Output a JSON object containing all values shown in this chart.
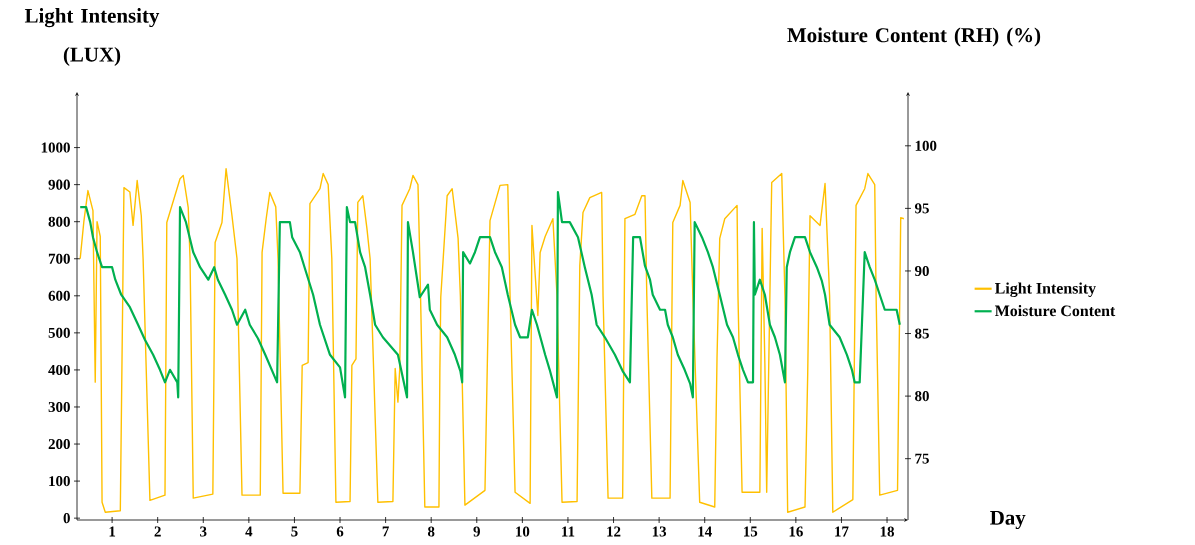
{
  "chart_data": {
    "type": "line",
    "xlabel": "Day",
    "ylabel": "Light Intensity (LUX)",
    "y2label": "Moisture Content (RH) (%)",
    "xlim": [
      0.23,
      18.46
    ],
    "xticks": [
      1,
      2,
      3,
      4,
      5,
      6,
      7,
      8,
      9,
      10,
      11,
      12,
      13,
      14,
      15,
      16,
      17,
      18
    ],
    "ylim": [
      -5,
      1150
    ],
    "yticks": [
      0,
      100,
      200,
      300,
      400,
      500,
      600,
      700,
      800,
      900,
      1000
    ],
    "y2lim": [
      70.1,
      104.3
    ],
    "y2ticks": [
      75,
      80,
      85,
      90,
      95,
      100
    ],
    "legend": "right",
    "marker": "none",
    "series": [
      {
        "name": "Light Intensity",
        "color": "#ffc000",
        "x": [
          0.3,
          0.38,
          0.47,
          0.58,
          0.63,
          0.67,
          0.74,
          0.78,
          0.85,
          1.18,
          1.26,
          1.39,
          1.46,
          1.55,
          1.64,
          1.68,
          1.83,
          2.16,
          2.2,
          2.49,
          2.56,
          2.67,
          2.71,
          2.78,
          3.21,
          3.26,
          3.41,
          3.5,
          3.63,
          3.74,
          3.85,
          4.25,
          4.29,
          4.38,
          4.46,
          4.59,
          4.64,
          4.75,
          5.12,
          5.17,
          5.3,
          5.34,
          5.56,
          5.63,
          5.74,
          5.82,
          5.91,
          6.22,
          6.26,
          6.35,
          6.39,
          6.5,
          6.59,
          6.66,
          6.83,
          7.16,
          7.21,
          7.27,
          7.31,
          7.36,
          7.53,
          7.6,
          7.71,
          7.75,
          7.86,
          8.17,
          8.19,
          8.21,
          8.35,
          8.46,
          8.59,
          8.64,
          8.74,
          9.18,
          9.29,
          9.51,
          9.68,
          9.73,
          9.84,
          10.17,
          10.21,
          10.34,
          10.39,
          10.5,
          10.67,
          10.76,
          10.87,
          11.2,
          11.26,
          11.33,
          11.48,
          11.74,
          11.77,
          11.88,
          12.2,
          12.25,
          12.47,
          12.62,
          12.69,
          12.73,
          12.84,
          13.24,
          13.3,
          13.46,
          13.52,
          13.68,
          13.74,
          13.89,
          14.22,
          14.27,
          14.33,
          14.44,
          14.71,
          14.73,
          14.82,
          15.21,
          15.26,
          15.32,
          15.36,
          15.39,
          15.47,
          15.69,
          15.76,
          15.82,
          16.2,
          16.26,
          16.31,
          16.53,
          16.64,
          16.74,
          16.81,
          17.25,
          17.32,
          17.51,
          17.58,
          17.73,
          17.76,
          17.84,
          18.23,
          18.3,
          18.37
        ],
        "values": [
          700,
          800,
          884,
          830,
          367,
          800,
          760,
          43,
          16,
          20,
          892,
          880,
          790,
          911,
          816,
          700,
          48,
          62,
          798,
          916,
          925,
          838,
          700,
          54,
          65,
          744,
          798,
          943,
          816,
          700,
          62,
          62,
          717,
          808,
          879,
          840,
          700,
          67,
          67,
          412,
          420,
          849,
          889,
          930,
          900,
          700,
          43,
          45,
          412,
          430,
          852,
          870,
          782,
          700,
          43,
          45,
          404,
          313,
          404,
          844,
          889,
          925,
          900,
          700,
          30,
          30,
          394,
          596,
          870,
          889,
          755,
          600,
          35,
          75,
          803,
          898,
          900,
          600,
          70,
          40,
          790,
          547,
          717,
          760,
          808,
          600,
          43,
          45,
          682,
          825,
          865,
          879,
          600,
          54,
          54,
          808,
          820,
          870,
          870,
          600,
          54,
          54,
          798,
          844,
          911,
          852,
          600,
          43,
          30,
          431,
          755,
          808,
          844,
          600,
          70,
          70,
          782,
          418,
          70,
          300,
          906,
          930,
          600,
          16,
          30,
          391,
          816,
          790,
          903,
          600,
          16,
          50,
          844,
          889,
          930,
          900,
          600,
          62,
          75,
          811,
          808
        ]
      },
      {
        "name": "Moisture Content",
        "color": "#00b050",
        "axis": "y2",
        "x": [
          0.3,
          0.43,
          0.52,
          0.58,
          0.67,
          0.78,
          1.0,
          1.07,
          1.2,
          1.39,
          1.57,
          1.72,
          1.9,
          2.05,
          2.16,
          2.27,
          2.43,
          2.45,
          2.49,
          2.62,
          2.78,
          2.93,
          3.11,
          3.24,
          3.32,
          3.48,
          3.63,
          3.74,
          3.92,
          4.02,
          4.2,
          4.36,
          4.62,
          4.68,
          4.9,
          4.95,
          5.12,
          5.23,
          5.41,
          5.56,
          5.78,
          6.0,
          6.11,
          6.15,
          6.22,
          6.33,
          6.44,
          6.55,
          6.66,
          6.77,
          6.94,
          7.27,
          7.47,
          7.49,
          7.6,
          7.75,
          7.93,
          7.97,
          8.13,
          8.35,
          8.52,
          8.64,
          8.68,
          8.7,
          8.85,
          8.96,
          9.07,
          9.29,
          9.4,
          9.55,
          9.68,
          9.84,
          9.95,
          10.12,
          10.21,
          10.32,
          10.5,
          10.6,
          10.76,
          10.78,
          10.87,
          11.04,
          11.22,
          11.37,
          11.52,
          11.63,
          11.81,
          12.03,
          12.2,
          12.36,
          12.43,
          12.58,
          12.69,
          12.8,
          12.86,
          13.02,
          13.13,
          13.19,
          13.3,
          13.41,
          13.56,
          13.68,
          13.74,
          13.78,
          13.94,
          14.07,
          14.18,
          14.33,
          14.49,
          14.62,
          14.73,
          14.84,
          14.95,
          15.06,
          15.08,
          15.1,
          15.21,
          15.32,
          15.43,
          15.54,
          15.65,
          15.76,
          15.8,
          15.87,
          15.98,
          16.2,
          16.31,
          16.46,
          16.57,
          16.64,
          16.74,
          16.96,
          17.12,
          17.23,
          17.29,
          17.4,
          17.51,
          17.62,
          17.73,
          17.84,
          17.95,
          18.21,
          18.28
        ],
        "values": [
          95.1,
          95.1,
          93.9,
          92.7,
          91.5,
          90.3,
          90.3,
          89.3,
          88.1,
          87.1,
          85.7,
          84.5,
          83.3,
          82.1,
          81.1,
          82.1,
          81.1,
          79.9,
          95.1,
          93.9,
          91.5,
          90.3,
          89.3,
          90.3,
          89.3,
          88.1,
          86.9,
          85.7,
          86.9,
          85.7,
          84.6,
          83.3,
          81.1,
          93.9,
          93.9,
          92.7,
          91.5,
          90.2,
          88.1,
          85.7,
          83.3,
          82.3,
          79.9,
          95.1,
          93.9,
          93.9,
          91.5,
          90.3,
          88.1,
          85.7,
          84.7,
          83.3,
          79.9,
          93.9,
          91.5,
          87.9,
          88.9,
          86.9,
          85.7,
          84.7,
          83.3,
          82.0,
          81.1,
          91.5,
          90.6,
          91.5,
          92.7,
          92.7,
          91.5,
          90.3,
          88.1,
          85.7,
          84.7,
          84.7,
          86.9,
          85.7,
          83.3,
          82.1,
          79.9,
          96.3,
          93.9,
          93.9,
          92.7,
          90.3,
          88.1,
          85.7,
          84.7,
          83.3,
          82.0,
          81.1,
          92.7,
          92.7,
          90.4,
          89.3,
          88.1,
          86.9,
          86.9,
          85.7,
          84.7,
          83.3,
          82.1,
          81.0,
          79.9,
          93.9,
          92.7,
          91.5,
          90.3,
          88.1,
          85.7,
          84.7,
          83.3,
          82.1,
          81.1,
          81.1,
          93.9,
          88.1,
          89.3,
          88.1,
          85.7,
          84.7,
          83.3,
          81.1,
          90.3,
          91.5,
          92.7,
          92.7,
          91.5,
          90.3,
          89.2,
          88.1,
          85.7,
          84.7,
          83.3,
          82.1,
          81.1,
          81.1,
          91.5,
          90.3,
          89.3,
          88.1,
          86.9,
          86.9,
          85.7
        ]
      }
    ]
  }
}
